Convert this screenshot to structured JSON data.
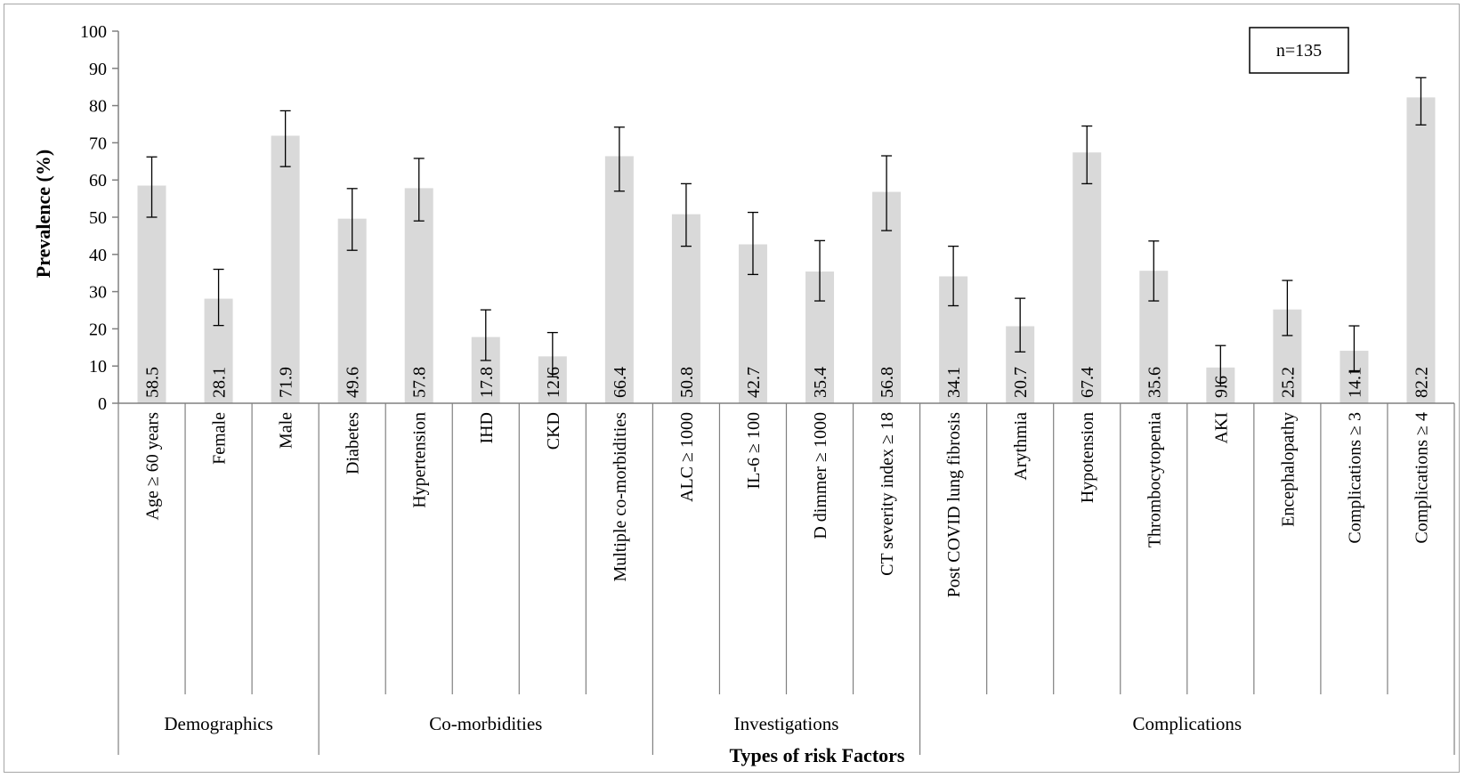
{
  "chart_data": {
    "type": "bar",
    "ylabel": "Prevalence (%)",
    "xlabel": "Types of risk Factors",
    "ylim": [
      0,
      100
    ],
    "yticks": [
      0,
      10,
      20,
      30,
      40,
      50,
      60,
      70,
      80,
      90,
      100
    ],
    "annotation": "n=135",
    "grid": false,
    "bar_color": "#d9d9d9",
    "categories": [
      "Age ≥ 60 years",
      "Female",
      "Male",
      "Diabetes",
      "Hypertension",
      "IHD",
      "CKD",
      "Multiple co-morbidities",
      "ALC ≥ 1000",
      "IL-6 ≥ 100",
      "D dimmer ≥ 1000",
      "CT severity index ≥ 18",
      "Post COVID lung fibrosis",
      "Arythmia",
      "Hypotension",
      "Thrombocytopenia",
      "AKI",
      "Encephalopathy",
      "Complications ≥ 3",
      "Complications ≥ 4"
    ],
    "values": [
      58.5,
      28.1,
      71.9,
      49.6,
      57.8,
      17.8,
      12.6,
      66.4,
      50.8,
      42.7,
      35.4,
      56.8,
      34.1,
      20.7,
      67.4,
      35.6,
      9.6,
      25.2,
      14.1,
      82.2
    ],
    "value_labels": [
      "58.5",
      "28.1",
      "71.9",
      "49.6",
      "57.8",
      "17.8",
      "12.6",
      "66.4",
      "50.8",
      "42.7",
      "35.4",
      "56.8",
      "34.1",
      "20.7",
      "67.4",
      "35.6",
      "9.6",
      "25.2",
      "14.1",
      "82.2"
    ],
    "error_low": [
      50.0,
      20.9,
      63.6,
      41.1,
      49.0,
      11.5,
      7.1,
      57.0,
      42.2,
      34.6,
      27.5,
      46.4,
      26.2,
      13.8,
      59.0,
      27.5,
      4.6,
      18.2,
      8.4,
      74.8
    ],
    "error_high": [
      66.2,
      36.0,
      78.6,
      57.7,
      65.8,
      25.1,
      19.0,
      74.2,
      59.0,
      51.3,
      43.7,
      66.5,
      42.2,
      28.2,
      74.5,
      43.6,
      15.5,
      33.0,
      20.8,
      87.5
    ],
    "groups": [
      {
        "label": "Demographics",
        "start": 0,
        "count": 3
      },
      {
        "label": "Co-morbidities",
        "start": 3,
        "count": 5
      },
      {
        "label": "Investigations",
        "start": 8,
        "count": 4
      },
      {
        "label": "Complications",
        "start": 12,
        "count": 8
      }
    ]
  }
}
